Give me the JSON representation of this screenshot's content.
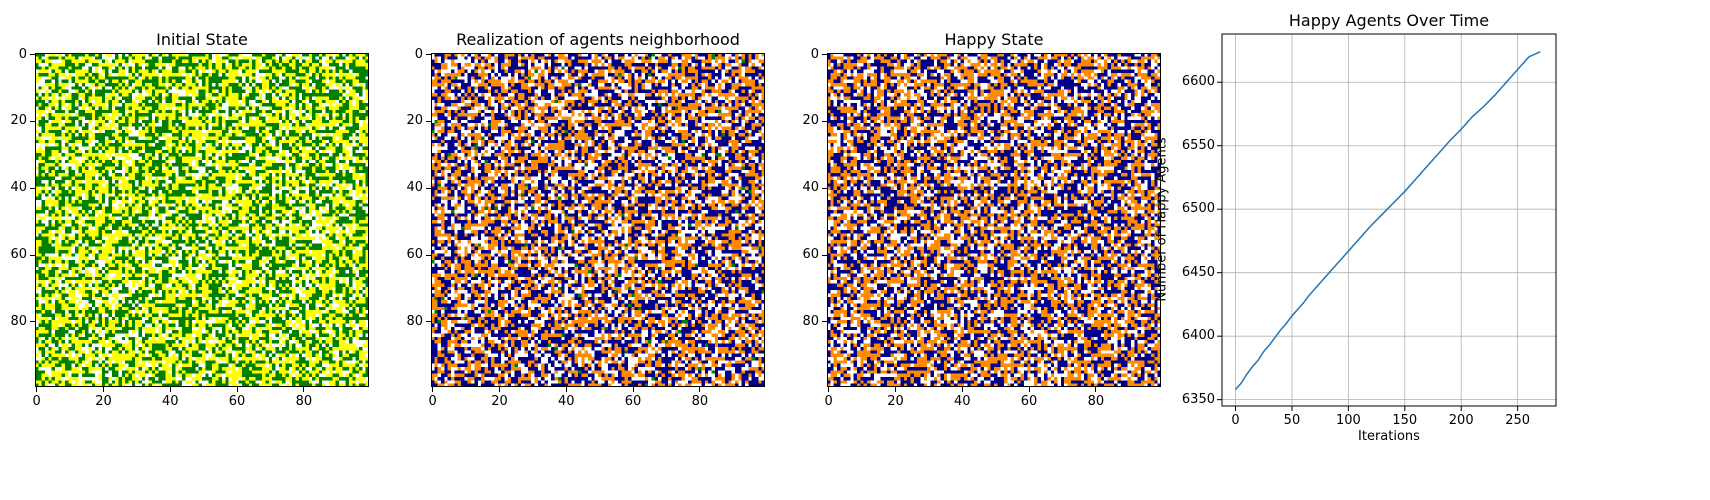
{
  "figure": {
    "panels": [
      {
        "title": "Initial State"
      },
      {
        "title": "Realization of agents neighborhood"
      },
      {
        "title": "Happy State"
      },
      {
        "title": "Happy Agents Over Time"
      }
    ]
  },
  "chart_data": [
    {
      "type": "heatmap",
      "title": "Initial State",
      "grid_size": 100,
      "x_ticks": [
        0,
        20,
        40,
        60,
        80
      ],
      "y_ticks": [
        0,
        20,
        40,
        60,
        80
      ],
      "colors": {
        "empty": "#ffffff",
        "group_a": "#008000",
        "group_b": "#ffff00"
      },
      "cell_fractions": {
        "empty": 0.2,
        "group_a": 0.4,
        "group_b": 0.4
      },
      "seed": 11
    },
    {
      "type": "heatmap",
      "title": "Realization of agents neighborhood",
      "grid_size": 100,
      "x_ticks": [
        0,
        20,
        40,
        60,
        80
      ],
      "y_ticks": [
        0,
        20,
        40,
        60,
        80
      ],
      "colors": {
        "empty": "#ffffff",
        "group_a": "#00008b",
        "group_b": "#ff8c00",
        "other": "#008000"
      },
      "cell_fractions": {
        "empty": 0.25,
        "group_a": 0.38,
        "group_b": 0.36,
        "other": 0.01
      },
      "seed": 23
    },
    {
      "type": "heatmap",
      "title": "Happy State",
      "grid_size": 100,
      "x_ticks": [
        0,
        20,
        40,
        60,
        80
      ],
      "y_ticks": [
        0,
        20,
        40,
        60,
        80
      ],
      "colors": {
        "empty": "#ffffff",
        "group_a": "#00008b",
        "group_b": "#ff8c00"
      },
      "cell_fractions": {
        "empty": 0.25,
        "group_a": 0.38,
        "group_b": 0.37
      },
      "seed": 37
    },
    {
      "type": "line",
      "title": "Happy Agents Over Time",
      "xlabel": "Iterations",
      "ylabel": "Number of Happy Agents",
      "xlim": [
        -12,
        284
      ],
      "ylim": [
        6345,
        6638
      ],
      "x_ticks": [
        0,
        50,
        100,
        150,
        200,
        250
      ],
      "y_ticks": [
        6350,
        6400,
        6450,
        6500,
        6550,
        6600
      ],
      "grid": true,
      "line_color": "#1f77b4",
      "series": [
        {
          "x": [
            0,
            5,
            10,
            15,
            20,
            25,
            30,
            35,
            40,
            45,
            50,
            55,
            60,
            65,
            70,
            75,
            80,
            85,
            90,
            95,
            100,
            110,
            120,
            130,
            140,
            150,
            160,
            170,
            180,
            190,
            200,
            210,
            220,
            230,
            240,
            250,
            260,
            270
          ],
          "values": [
            6358,
            6363,
            6370,
            6376,
            6381,
            6388,
            6393,
            6399,
            6405,
            6410,
            6416,
            6421,
            6426,
            6432,
            6437,
            6442,
            6447,
            6452,
            6457,
            6462,
            6467,
            6477,
            6487,
            6496,
            6505,
            6514,
            6524,
            6534,
            6544,
            6554,
            6563,
            6573,
            6581,
            6590,
            6600,
            6610,
            6620,
            6624
          ]
        }
      ]
    }
  ]
}
